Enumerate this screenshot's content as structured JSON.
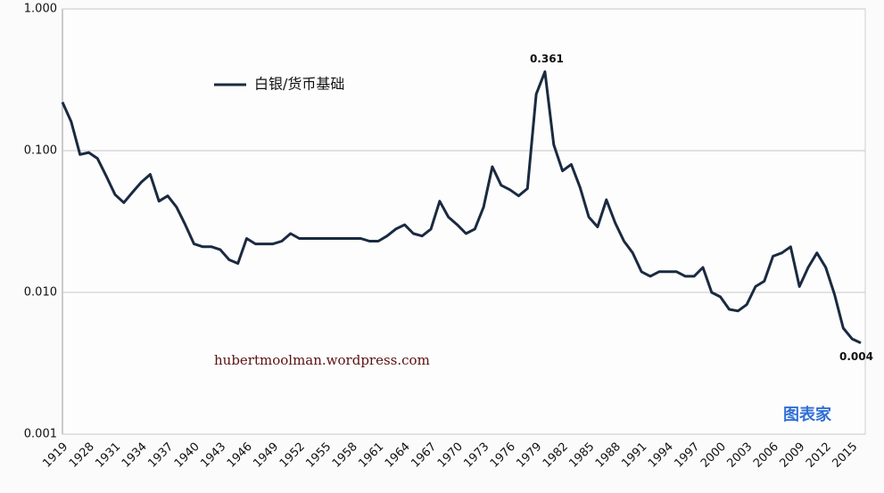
{
  "chart_data": {
    "type": "line",
    "log": true,
    "grid": true,
    "legend": "top-left",
    "categories": [
      "1919",
      null,
      null,
      "1928",
      null,
      null,
      "1931",
      null,
      null,
      "1934",
      null,
      null,
      "1937",
      null,
      null,
      "1940",
      null,
      null,
      "1943",
      null,
      null,
      "1946",
      null,
      null,
      "1949",
      null,
      null,
      "1952",
      null,
      null,
      "1955",
      null,
      null,
      "1958",
      null,
      null,
      "1961",
      null,
      null,
      "1964",
      null,
      null,
      "1967",
      null,
      null,
      "1970",
      null,
      null,
      "1973",
      null,
      null,
      "1976",
      null,
      null,
      "1979",
      null,
      null,
      "1982",
      null,
      null,
      "1985",
      null,
      null,
      "1988",
      null,
      null,
      "1991",
      null,
      null,
      "1994",
      null,
      null,
      "1997",
      null,
      null,
      "2000",
      null,
      null,
      "2003",
      null,
      null,
      "2006",
      null,
      null,
      "2009",
      null,
      null,
      "2012",
      null,
      null,
      "2015",
      null
    ],
    "series": [
      {
        "name": "白银/货币基础",
        "color": "#1a2a40",
        "values": [
          0.22,
          0.16,
          0.094,
          0.097,
          0.088,
          0.066,
          0.049,
          0.043,
          0.051,
          0.06,
          0.068,
          0.044,
          0.048,
          0.04,
          0.03,
          0.022,
          0.021,
          0.021,
          0.02,
          0.017,
          0.016,
          0.024,
          0.022,
          0.022,
          0.022,
          0.023,
          0.026,
          0.024,
          0.024,
          0.024,
          0.024,
          0.024,
          0.024,
          0.024,
          0.024,
          0.023,
          0.023,
          0.025,
          0.028,
          0.03,
          0.026,
          0.025,
          0.028,
          0.044,
          0.034,
          0.03,
          0.026,
          0.028,
          0.04,
          0.077,
          0.057,
          0.053,
          0.048,
          0.054,
          0.25,
          0.361,
          0.11,
          0.072,
          0.08,
          0.055,
          0.034,
          0.029,
          0.045,
          0.031,
          0.023,
          0.019,
          0.014,
          0.013,
          0.014,
          0.014,
          0.014,
          0.013,
          0.013,
          0.015,
          0.01,
          0.0093,
          0.0076,
          0.0074,
          0.0082,
          0.011,
          0.012,
          0.018,
          0.019,
          0.021,
          0.011,
          0.015,
          0.019,
          0.015,
          0.0097,
          0.0056,
          0.0047,
          0.0044
        ],
        "value_labels": [
          null,
          null,
          null,
          null,
          null,
          null,
          null,
          null,
          null,
          null,
          null,
          null,
          null,
          null,
          null,
          null,
          null,
          null,
          null,
          null,
          null,
          null,
          null,
          null,
          null,
          null,
          null,
          null,
          null,
          null,
          null,
          null,
          null,
          null,
          null,
          null,
          null,
          null,
          null,
          null,
          null,
          null,
          null,
          null,
          null,
          null,
          null,
          null,
          null,
          null,
          null,
          null,
          null,
          null,
          null,
          "0.361",
          null,
          null,
          null,
          null,
          null,
          null,
          null,
          null,
          null,
          null,
          null,
          null,
          null,
          null,
          null,
          null,
          null,
          null,
          null,
          null,
          null,
          null,
          null,
          null,
          null,
          null,
          null,
          null,
          null,
          null,
          null,
          null,
          null,
          null,
          null,
          "0.004"
        ]
      }
    ],
    "ylim": [
      0.001,
      1
    ],
    "yticks": [
      {
        "value": 0.001,
        "label": "0.001"
      },
      {
        "value": 0.01,
        "label": "0.010"
      },
      {
        "value": 0.1,
        "label": "0.100"
      },
      {
        "value": 1,
        "label": "1.000"
      }
    ],
    "annotation": "hubertmoolman.wordpress.com",
    "watermark": "图表家"
  }
}
